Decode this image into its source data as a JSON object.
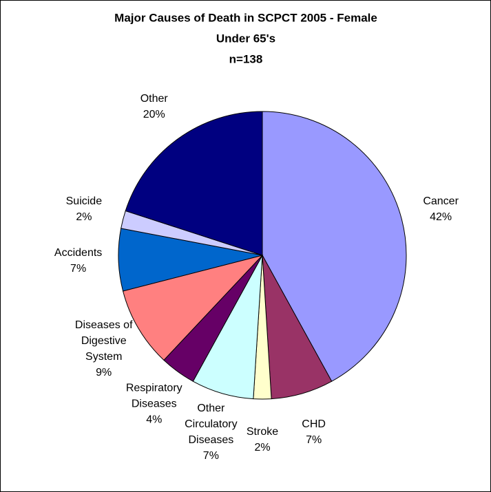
{
  "chart_data": {
    "type": "pie",
    "title": [
      "Major Causes of Death in SCPCT 2005 - Female",
      "Under 65's",
      "n=138"
    ],
    "categories": [
      "Cancer",
      "CHD",
      "Stroke",
      "Other Circulatory Diseases",
      "Respiratory Diseases",
      "Diseases of Digestive System",
      "Accidents",
      "Suicide",
      "Other"
    ],
    "values": [
      42,
      7,
      2,
      7,
      4,
      9,
      7,
      2,
      20
    ],
    "value_labels": [
      "42%",
      "7%",
      "2%",
      "7%",
      "4%",
      "9%",
      "7%",
      "2%",
      "20%"
    ],
    "colors": [
      "#9999ff",
      "#993366",
      "#ffffcc",
      "#ccffff",
      "#660066",
      "#ff8080",
      "#0066cc",
      "#ccccff",
      "#000080"
    ]
  }
}
